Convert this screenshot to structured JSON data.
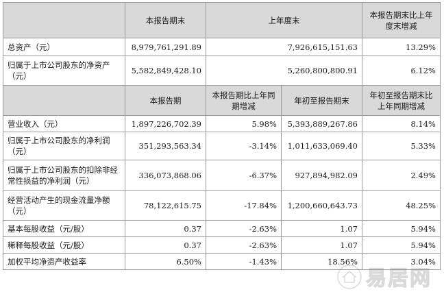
{
  "top_table": {
    "headers": [
      "",
      "本报告期末",
      "上年度末",
      "本报告期末比上年度末增减"
    ],
    "rows": [
      {
        "label": "总资产（元）",
        "current": "8,979,761,291.89",
        "prior": "7,926,615,151.63",
        "change": "13.29%"
      },
      {
        "label": "归属于上市公司股东的净资产（元）",
        "current": "5,582,849,428.10",
        "prior": "5,260,800,800.91",
        "change": "6.12%"
      }
    ]
  },
  "bottom_table": {
    "headers": [
      "",
      "本报告期",
      "本报告期比上年同期增减",
      "年初至报告期末",
      "年初至报告期末比上年同期增减"
    ],
    "rows": [
      {
        "label": "营业收入（元）",
        "period": "1,897,226,702.39",
        "period_change": "5.98%",
        "ytd": "5,393,889,267.86",
        "ytd_change": "8.14%"
      },
      {
        "label": "归属于上市公司股东的净利润（元）",
        "period": "351,293,563.34",
        "period_change": "-3.14%",
        "ytd": "1,011,633,069.40",
        "ytd_change": "5.33%"
      },
      {
        "label": "归属于上市公司股东的扣除非经常性损益的净利润（元）",
        "period": "336,073,868.06",
        "period_change": "-6.37%",
        "ytd": "927,894,982.09",
        "ytd_change": "2.49%"
      },
      {
        "label": "经营活动产生的现金流量净额（元）",
        "period": "78,122,615.75",
        "period_change": "-17.84%",
        "ytd": "1,200,660,643.73",
        "ytd_change": "48.25%"
      },
      {
        "label": "基本每股收益（元/股）",
        "period": "0.37",
        "period_change": "-2.63%",
        "ytd": "1.07",
        "ytd_change": "5.94%"
      },
      {
        "label": "稀释每股收益（元/股）",
        "period": "0.37",
        "period_change": "-2.63%",
        "ytd": "1.07",
        "ytd_change": "5.94%"
      },
      {
        "label": "加权平均净资产收益率",
        "period": "6.50%",
        "period_change": "-1.43%",
        "ytd": "18.56%",
        "ytd_change": "3.04%"
      }
    ]
  },
  "watermark": {
    "text": "易居网"
  }
}
